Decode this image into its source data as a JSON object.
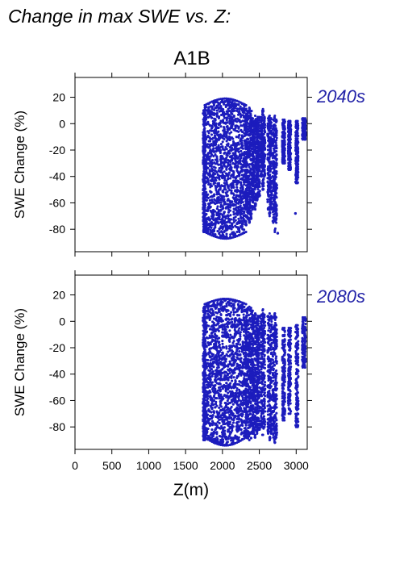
{
  "page": {
    "heading": "Change in max SWE vs. Z:",
    "scenario": "A1B",
    "x_axis_label": "Z(m)",
    "y_axis_label": "SWE Change (%)"
  },
  "colors": {
    "points": "#1c1cbd",
    "period_label": "#2222a8",
    "axes": "#000000"
  },
  "chart_data": [
    {
      "type": "scatter",
      "period": "2040s",
      "xlabel": "",
      "ylabel": "SWE Change (%)",
      "xlim": [
        0,
        3150
      ],
      "ylim": [
        -97,
        35
      ],
      "x_ticks": [
        0,
        500,
        1000,
        1500,
        2000,
        2500,
        3000
      ],
      "y_ticks": [
        20,
        0,
        -20,
        -40,
        -60,
        -80
      ],
      "grid": false,
      "clusters": [
        {
          "x": [
            1745,
            1760
          ],
          "y_max": [
            10,
            12
          ],
          "y_min": [
            -82,
            -78
          ],
          "density": 4
        },
        {
          "x": [
            1760,
            2320
          ],
          "y_max": [
            14,
            19
          ],
          "y_min": [
            -82,
            -87
          ],
          "density": 40
        },
        {
          "x": [
            2320,
            2410
          ],
          "y_max": [
            4,
            12
          ],
          "y_min": [
            -65,
            -75
          ],
          "density": 9
        },
        {
          "x": [
            2420,
            2470
          ],
          "y_max": [
            2,
            6
          ],
          "y_min": [
            -58,
            -65
          ],
          "density": 5
        },
        {
          "x": [
            2480,
            2500
          ],
          "y_max": [
            5,
            6
          ],
          "y_min": [
            -55,
            -63
          ],
          "density": 2
        },
        {
          "x": [
            2530,
            2570
          ],
          "y_max": [
            5,
            11
          ],
          "y_min": [
            -40,
            -50
          ],
          "density": 4
        },
        {
          "x": [
            2620,
            2660
          ],
          "y_max": [
            4,
            6
          ],
          "y_min": [
            -65,
            -70
          ],
          "density": 4
        },
        {
          "x": [
            2690,
            2730
          ],
          "y_max": [
            3,
            6
          ],
          "y_min": [
            -75,
            -82
          ],
          "density": 4
        },
        {
          "x": [
            2820,
            2840
          ],
          "y_max": [
            3,
            4
          ],
          "y_min": [
            -30,
            -40
          ],
          "density": 2
        },
        {
          "x": [
            2900,
            2920
          ],
          "y_max": [
            2,
            3
          ],
          "y_min": [
            -35,
            -45
          ],
          "density": 2
        },
        {
          "x": [
            3000,
            3020
          ],
          "y_max": [
            2,
            4
          ],
          "y_min": [
            -45,
            -50
          ],
          "density": 2
        },
        {
          "x": [
            3090,
            3120
          ],
          "y_max": [
            4,
            7
          ],
          "y_min": [
            -12,
            -15
          ],
          "density": 2
        }
      ],
      "outliers": [
        {
          "x": 2990,
          "y": -68
        },
        {
          "x": 2750,
          "y": -83
        }
      ]
    },
    {
      "type": "scatter",
      "period": "2080s",
      "xlabel": "Z(m)",
      "ylabel": "SWE Change (%)",
      "xlim": [
        0,
        3150
      ],
      "ylim": [
        -97,
        35
      ],
      "x_ticks": [
        0,
        500,
        1000,
        1500,
        2000,
        2500,
        3000
      ],
      "y_ticks": [
        20,
        0,
        -20,
        -40,
        -60,
        -80
      ],
      "grid": false,
      "clusters": [
        {
          "x": [
            1745,
            1760
          ],
          "y_max": [
            10,
            12
          ],
          "y_min": [
            -90,
            -85
          ],
          "density": 4
        },
        {
          "x": [
            1760,
            2320
          ],
          "y_max": [
            13,
            17
          ],
          "y_min": [
            -88,
            -94
          ],
          "density": 40
        },
        {
          "x": [
            2320,
            2410
          ],
          "y_max": [
            8,
            11
          ],
          "y_min": [
            -85,
            -90
          ],
          "density": 9
        },
        {
          "x": [
            2420,
            2470
          ],
          "y_max": [
            2,
            6
          ],
          "y_min": [
            -85,
            -88
          ],
          "density": 5
        },
        {
          "x": [
            2480,
            2500
          ],
          "y_max": [
            4,
            6
          ],
          "y_min": [
            -82,
            -86
          ],
          "density": 2
        },
        {
          "x": [
            2530,
            2570
          ],
          "y_max": [
            5,
            9
          ],
          "y_min": [
            -80,
            -86
          ],
          "density": 4
        },
        {
          "x": [
            2620,
            2660
          ],
          "y_max": [
            4,
            6
          ],
          "y_min": [
            -85,
            -90
          ],
          "density": 4
        },
        {
          "x": [
            2690,
            2730
          ],
          "y_max": [
            3,
            6
          ],
          "y_min": [
            -88,
            -92
          ],
          "density": 4
        },
        {
          "x": [
            2820,
            2840
          ],
          "y_max": [
            -5,
            0
          ],
          "y_min": [
            -75,
            -82
          ],
          "density": 2
        },
        {
          "x": [
            2900,
            2920
          ],
          "y_max": [
            -5,
            -3
          ],
          "y_min": [
            -70,
            -78
          ],
          "density": 2
        },
        {
          "x": [
            3000,
            3020
          ],
          "y_max": [
            -3,
            0
          ],
          "y_min": [
            -80,
            -90
          ],
          "density": 2
        },
        {
          "x": [
            3090,
            3120
          ],
          "y_max": [
            3,
            6
          ],
          "y_min": [
            -35,
            -40
          ],
          "density": 2
        }
      ],
      "outliers": []
    }
  ]
}
